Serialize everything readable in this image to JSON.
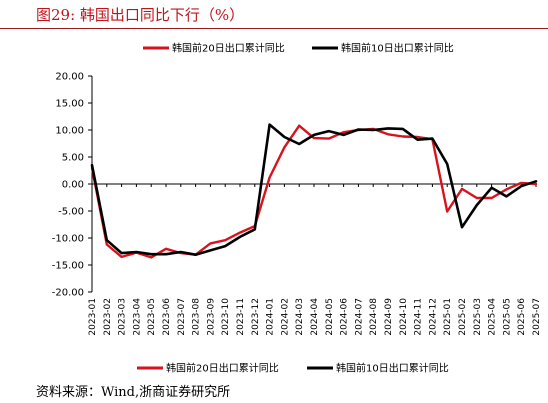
{
  "figure": {
    "title": "图29:  韩国出口同比下行（%）",
    "source": "资料来源：Wind,浙商证券研究所"
  },
  "colors": {
    "accent": "#c0141c",
    "series1": "#d7141d",
    "series2": "#000000"
  },
  "chart_data": {
    "type": "line",
    "x": [
      "2023-01",
      "2023-02",
      "2023-03",
      "2023-04",
      "2023-05",
      "2023-06",
      "2023-07",
      "2023-08",
      "2023-09",
      "2023-10",
      "2023-11",
      "2023-12",
      "2024-01",
      "2024-02",
      "2024-03",
      "2024-04",
      "2024-05",
      "2024-06",
      "2024-07",
      "2024-08",
      "2024-09",
      "2024-10",
      "2024-11",
      "2024-12",
      "2025-01",
      "2025-02",
      "2025-03",
      "2025-04",
      "2025-05",
      "2025-06",
      "2025-07"
    ],
    "y_ticks": [
      "20.00",
      "15.00",
      "10.00",
      "5.00",
      "0.00",
      "-5.00",
      "-10.00",
      "-15.00",
      "-20.00"
    ],
    "ylim": [
      -20,
      20
    ],
    "legend_position": "top and bottom",
    "series": [
      {
        "name": "韩国前20日出口累计同比",
        "color": "#d7141d",
        "values": [
          3.0,
          -11.2,
          -13.5,
          -12.7,
          -13.6,
          -12.0,
          -12.8,
          -13.1,
          -11.0,
          -10.4,
          -9.0,
          -7.8,
          1.2,
          6.8,
          10.8,
          8.5,
          8.4,
          9.6,
          10.0,
          10.2,
          9.2,
          8.8,
          8.7,
          8.3,
          -5.1,
          -0.9,
          -2.6,
          -2.6,
          -1.0,
          0.2,
          0.0
        ]
      },
      {
        "name": "韩国前10日出口累计同比",
        "color": "#000000",
        "values": [
          3.5,
          -10.4,
          -12.8,
          -12.6,
          -13.0,
          -13.0,
          -12.6,
          -13.1,
          -12.3,
          -11.5,
          -9.8,
          -8.4,
          11.0,
          8.7,
          7.4,
          9.1,
          9.8,
          9.1,
          10.1,
          10.0,
          10.3,
          10.2,
          8.2,
          8.4,
          3.7,
          -8.0,
          -3.9,
          -0.7,
          -2.3,
          -0.4,
          0.5
        ]
      }
    ]
  }
}
